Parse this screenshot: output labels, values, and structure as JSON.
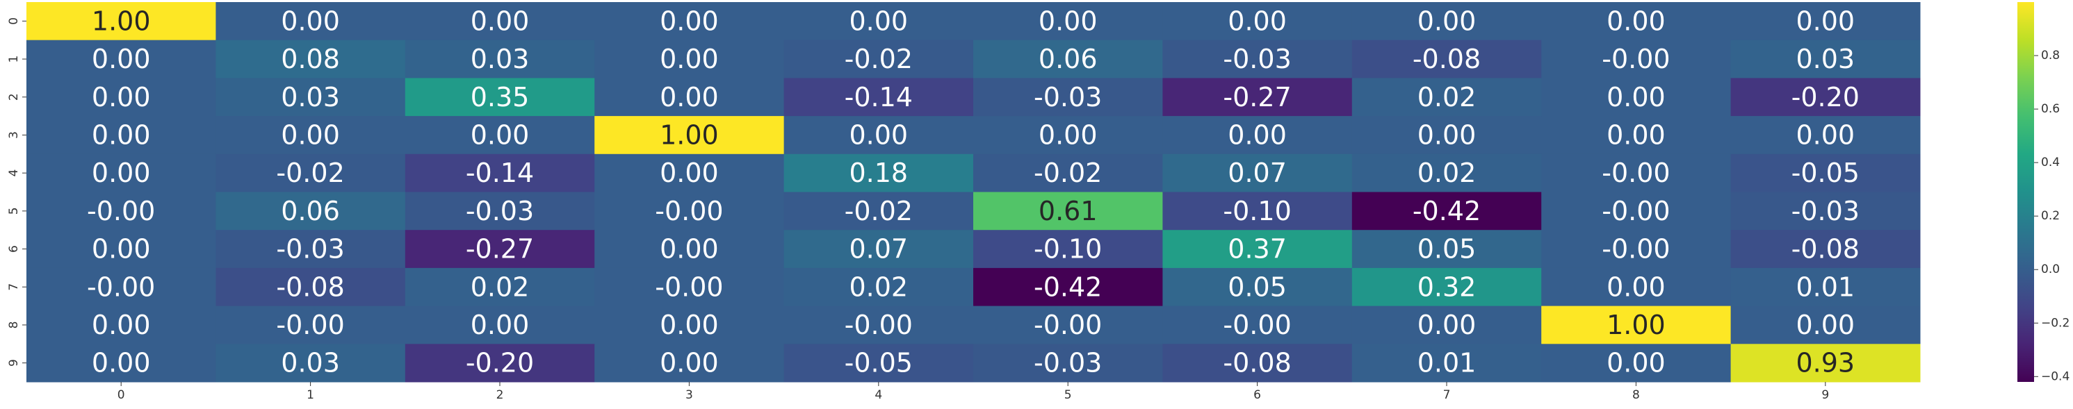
{
  "chart_data": {
    "type": "heatmap",
    "title": "",
    "xlabel": "",
    "ylabel": "",
    "x_categories": [
      "0",
      "1",
      "2",
      "3",
      "4",
      "5",
      "6",
      "7",
      "8",
      "9"
    ],
    "y_categories": [
      "0",
      "1",
      "2",
      "3",
      "4",
      "5",
      "6",
      "7",
      "8",
      "9"
    ],
    "values": [
      [
        1.0,
        0.0,
        0.0,
        0.0,
        0.0,
        0.0,
        0.0,
        0.0,
        0.0,
        0.0
      ],
      [
        0.0,
        0.08,
        0.03,
        0.0,
        -0.02,
        0.06,
        -0.03,
        -0.08,
        -0.0,
        0.03
      ],
      [
        0.0,
        0.03,
        0.35,
        0.0,
        -0.14,
        -0.03,
        -0.27,
        0.02,
        0.0,
        -0.2
      ],
      [
        0.0,
        0.0,
        0.0,
        1.0,
        0.0,
        0.0,
        0.0,
        0.0,
        0.0,
        0.0
      ],
      [
        0.0,
        -0.02,
        -0.14,
        0.0,
        0.18,
        -0.02,
        0.07,
        0.02,
        -0.0,
        -0.05
      ],
      [
        -0.0,
        0.06,
        -0.03,
        -0.0,
        -0.02,
        0.61,
        -0.1,
        -0.42,
        -0.0,
        -0.03
      ],
      [
        0.0,
        -0.03,
        -0.27,
        0.0,
        0.07,
        -0.1,
        0.37,
        0.05,
        -0.0,
        -0.08
      ],
      [
        -0.0,
        -0.08,
        0.02,
        -0.0,
        0.02,
        -0.42,
        0.05,
        0.32,
        0.0,
        0.01
      ],
      [
        0.0,
        -0.0,
        0.0,
        0.0,
        -0.0,
        -0.0,
        -0.0,
        0.0,
        1.0,
        0.0
      ],
      [
        0.0,
        0.03,
        -0.2,
        0.0,
        -0.05,
        -0.03,
        -0.08,
        0.01,
        0.0,
        0.93
      ]
    ],
    "annotations": [
      [
        "1.00",
        "0.00",
        "0.00",
        "0.00",
        "0.00",
        "0.00",
        "0.00",
        "0.00",
        "0.00",
        "0.00"
      ],
      [
        "0.00",
        "0.08",
        "0.03",
        "0.00",
        "-0.02",
        "0.06",
        "-0.03",
        "-0.08",
        "-0.00",
        "0.03"
      ],
      [
        "0.00",
        "0.03",
        "0.35",
        "0.00",
        "-0.14",
        "-0.03",
        "-0.27",
        "0.02",
        "0.00",
        "-0.20"
      ],
      [
        "0.00",
        "0.00",
        "0.00",
        "1.00",
        "0.00",
        "0.00",
        "0.00",
        "0.00",
        "0.00",
        "0.00"
      ],
      [
        "0.00",
        "-0.02",
        "-0.14",
        "0.00",
        "0.18",
        "-0.02",
        "0.07",
        "0.02",
        "-0.00",
        "-0.05"
      ],
      [
        "-0.00",
        "0.06",
        "-0.03",
        "-0.00",
        "-0.02",
        "0.61",
        "-0.10",
        "-0.42",
        "-0.00",
        "-0.03"
      ],
      [
        "0.00",
        "-0.03",
        "-0.27",
        "0.00",
        "0.07",
        "-0.10",
        "0.37",
        "0.05",
        "-0.00",
        "-0.08"
      ],
      [
        "-0.00",
        "-0.08",
        "0.02",
        "-0.00",
        "0.02",
        "-0.42",
        "0.05",
        "0.32",
        "0.00",
        "0.01"
      ],
      [
        "0.00",
        "-0.00",
        "0.00",
        "0.00",
        "-0.00",
        "-0.00",
        "-0.00",
        "0.00",
        "1.00",
        "0.00"
      ],
      [
        "0.00",
        "0.03",
        "-0.20",
        "0.00",
        "-0.05",
        "-0.03",
        "-0.08",
        "0.01",
        "0.00",
        "0.93"
      ]
    ],
    "colormap": "viridis",
    "vmin": -0.42,
    "vmax": 1.0,
    "colorbar": {
      "ticks": [
        -0.4,
        -0.2,
        0.0,
        0.2,
        0.4,
        0.6,
        0.8
      ],
      "tick_labels": [
        "−0.4",
        "−0.2",
        "0.0",
        "0.2",
        "0.4",
        "0.6",
        "0.8"
      ],
      "placement": "right"
    },
    "annotation_colors": {
      "on_dark": "#ffffff",
      "on_light": "#262626"
    },
    "grid": false
  }
}
